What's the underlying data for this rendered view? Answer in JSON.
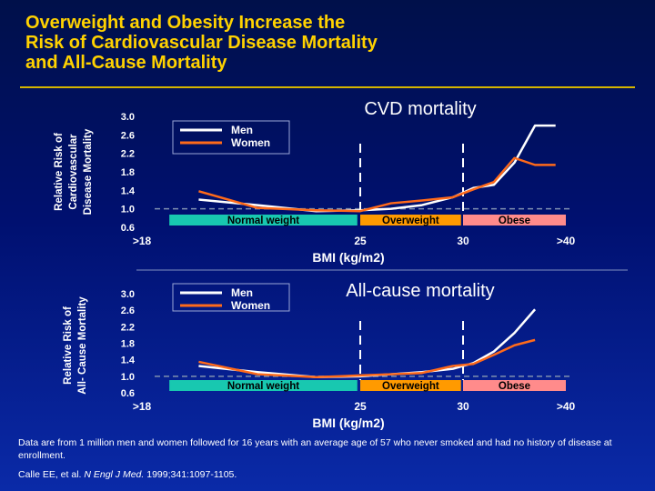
{
  "title": {
    "lines": [
      "Overweight and Obesity Increase the",
      "Risk of Cardiovascular Disease Mortality",
      "and All-Cause Mortality"
    ]
  },
  "colors": {
    "title": "#ffd200",
    "men": "#ffffff",
    "women": "#ff6a1a",
    "normal_weight_band": "#18c8b0",
    "overweight_band": "#ff9a00",
    "obese_band": "#ff8b8b",
    "reference_line": "#8090b0"
  },
  "chart_data": [
    {
      "type": "line",
      "title": "CVD mortality",
      "ylabel": [
        "Relative Risk of",
        "Cardiovascular",
        "Disease Mortality"
      ],
      "xlabel": "BMI (kg/m2)",
      "y_ticks": [
        "3.0",
        "2.6",
        "2.2",
        "1.8",
        "1.4",
        "1.0",
        "0.6"
      ],
      "ylim": [
        0.6,
        3.0
      ],
      "x_ticks": [
        {
          "label": ">18",
          "bmi": 18
        },
        {
          "label": "25",
          "bmi": 25
        },
        {
          "label": "30",
          "bmi": 30
        },
        {
          "label": ">40",
          "bmi": 40
        }
      ],
      "legend": {
        "placement": "top-left",
        "entries": [
          "Men",
          "Women"
        ]
      },
      "weight_categories": [
        {
          "label": "Normal weight",
          "from": 18.5,
          "to": 24.9
        },
        {
          "label": "Overweight",
          "from": 25.0,
          "to": 29.9
        },
        {
          "label": "Obese",
          "from": 30.0,
          "to": 40.0
        }
      ],
      "reference_y": 1.0,
      "cutoffs_x": [
        25,
        30
      ],
      "series": [
        {
          "name": "Men",
          "x": [
            19.5,
            21.5,
            23.5,
            25.0,
            26.5,
            28.0,
            29.5,
            31.0,
            33.0,
            35.0,
            37.0,
            39.0
          ],
          "values": [
            1.2,
            1.08,
            0.95,
            0.97,
            1.0,
            1.08,
            1.25,
            1.45,
            1.52,
            2.0,
            2.8,
            2.8
          ]
        },
        {
          "name": "Women",
          "x": [
            19.5,
            21.5,
            23.5,
            25.0,
            26.5,
            28.0,
            29.5,
            31.0,
            33.0,
            35.0,
            37.0,
            39.0
          ],
          "values": [
            1.38,
            1.02,
            0.97,
            0.95,
            1.12,
            1.18,
            1.25,
            1.42,
            1.58,
            2.1,
            1.95,
            1.95
          ]
        }
      ]
    },
    {
      "type": "line",
      "title": "All-cause mortality",
      "ylabel": [
        "Relative Risk of",
        "All- Cause Mortality"
      ],
      "xlabel": "BMI (kg/m2)",
      "y_ticks": [
        "3.0",
        "2.6",
        "2.2",
        "1.8",
        "1.4",
        "1.0",
        "0.6"
      ],
      "ylim": [
        0.6,
        3.0
      ],
      "x_ticks": [
        {
          "label": ">18",
          "bmi": 18
        },
        {
          "label": "25",
          "bmi": 25
        },
        {
          "label": "30",
          "bmi": 30
        },
        {
          "label": ">40",
          "bmi": 40
        }
      ],
      "legend": {
        "placement": "top-left",
        "entries": [
          "Men",
          "Women"
        ]
      },
      "weight_categories": [
        {
          "label": "Normal weight",
          "from": 18.5,
          "to": 24.9
        },
        {
          "label": "Overweight",
          "from": 25.0,
          "to": 29.9
        },
        {
          "label": "Obese",
          "from": 30.0,
          "to": 40.0
        }
      ],
      "reference_y": 1.0,
      "cutoffs_x": [
        25,
        30
      ],
      "series": [
        {
          "name": "Men",
          "x": [
            19.5,
            21.5,
            23.5,
            25.0,
            26.5,
            28.0,
            29.5,
            31.0,
            33.0,
            35.0,
            37.0
          ],
          "values": [
            1.25,
            1.1,
            0.98,
            1.0,
            1.05,
            1.1,
            1.18,
            1.32,
            1.6,
            2.05,
            2.62
          ]
        },
        {
          "name": "Women",
          "x": [
            19.5,
            21.5,
            23.5,
            25.0,
            26.5,
            28.0,
            29.5,
            31.0,
            33.0,
            35.0,
            37.0
          ],
          "values": [
            1.35,
            1.05,
            0.98,
            1.02,
            1.05,
            1.08,
            1.25,
            1.3,
            1.52,
            1.75,
            1.88
          ]
        }
      ]
    }
  ],
  "footnote": {
    "data": "Data are from 1 million men and women followed for 16 years with an average age of 57 who never smoked and had no history of disease at enrollment.",
    "citation_authors": "Calle EE,  et al.",
    "citation_journal": "N Engl J Med.",
    "citation_rest": "1999;341:1097-1105."
  }
}
